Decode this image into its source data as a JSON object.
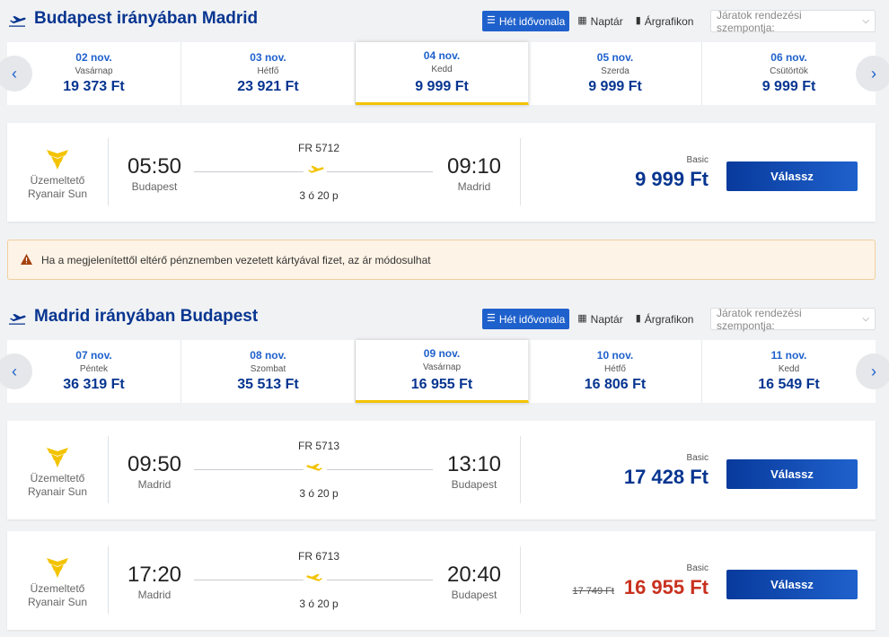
{
  "view_options": {
    "week_timeline": "Hét idővonala",
    "calendar": "Naptár",
    "price_chart": "Árgrafikon",
    "sort_placeholder": "Járatok rendezési szempontja:"
  },
  "outbound": {
    "title": "Budapest irányában Madrid",
    "dates": [
      {
        "date": "02 nov.",
        "weekday": "Vasárnap",
        "price": "19 373 Ft"
      },
      {
        "date": "03 nov.",
        "weekday": "Hétfő",
        "price": "23 921 Ft"
      },
      {
        "date": "04 nov.",
        "weekday": "Kedd",
        "price": "9 999 Ft"
      },
      {
        "date": "05 nov.",
        "weekday": "Szerda",
        "price": "9 999 Ft"
      },
      {
        "date": "06 nov.",
        "weekday": "Csütörtök",
        "price": "9 999 Ft"
      }
    ],
    "flights": [
      {
        "operator_label": "Üzemeltető",
        "operator": "Ryanair Sun",
        "dep_time": "05:50",
        "dep_city": "Budapest",
        "flight_no": "FR 5712",
        "duration": "3 ó 20 p",
        "arr_time": "09:10",
        "arr_city": "Madrid",
        "fare": "Basic",
        "price": "9 999 Ft",
        "button": "Válassz"
      }
    ]
  },
  "alert": {
    "text": "Ha a megjelenítettől eltérő pénznemben vezetett kártyával fizet, az ár módosulhat"
  },
  "inbound": {
    "title": "Madrid irányában Budapest",
    "dates": [
      {
        "date": "07 nov.",
        "weekday": "Péntek",
        "price": "36 319 Ft"
      },
      {
        "date": "08 nov.",
        "weekday": "Szombat",
        "price": "35 513 Ft"
      },
      {
        "date": "09 nov.",
        "weekday": "Vasárnap",
        "price": "16 955 Ft"
      },
      {
        "date": "10 nov.",
        "weekday": "Hétfő",
        "price": "16 806 Ft"
      },
      {
        "date": "11 nov.",
        "weekday": "Kedd",
        "price": "16 549 Ft"
      }
    ],
    "flights": [
      {
        "operator_label": "Üzemeltető",
        "operator": "Ryanair Sun",
        "dep_time": "09:50",
        "dep_city": "Madrid",
        "flight_no": "FR 5713",
        "duration": "3 ó 20 p",
        "arr_time": "13:10",
        "arr_city": "Budapest",
        "fare": "Basic",
        "price": "17 428 Ft",
        "button": "Válassz"
      },
      {
        "operator_label": "Üzemeltető",
        "operator": "Ryanair Sun",
        "dep_time": "17:20",
        "dep_city": "Madrid",
        "flight_no": "FR 6713",
        "duration": "3 ó 20 p",
        "arr_time": "20:40",
        "arr_city": "Budapest",
        "fare": "Basic",
        "old_price": "17 749 Ft",
        "price": "16 955 Ft",
        "button": "Válassz"
      }
    ]
  },
  "colors": {
    "brand_blue": "#073590",
    "accent_blue": "#1f61cc",
    "ryanair_yellow": "#f3c300",
    "discount_red": "#c8311f"
  }
}
